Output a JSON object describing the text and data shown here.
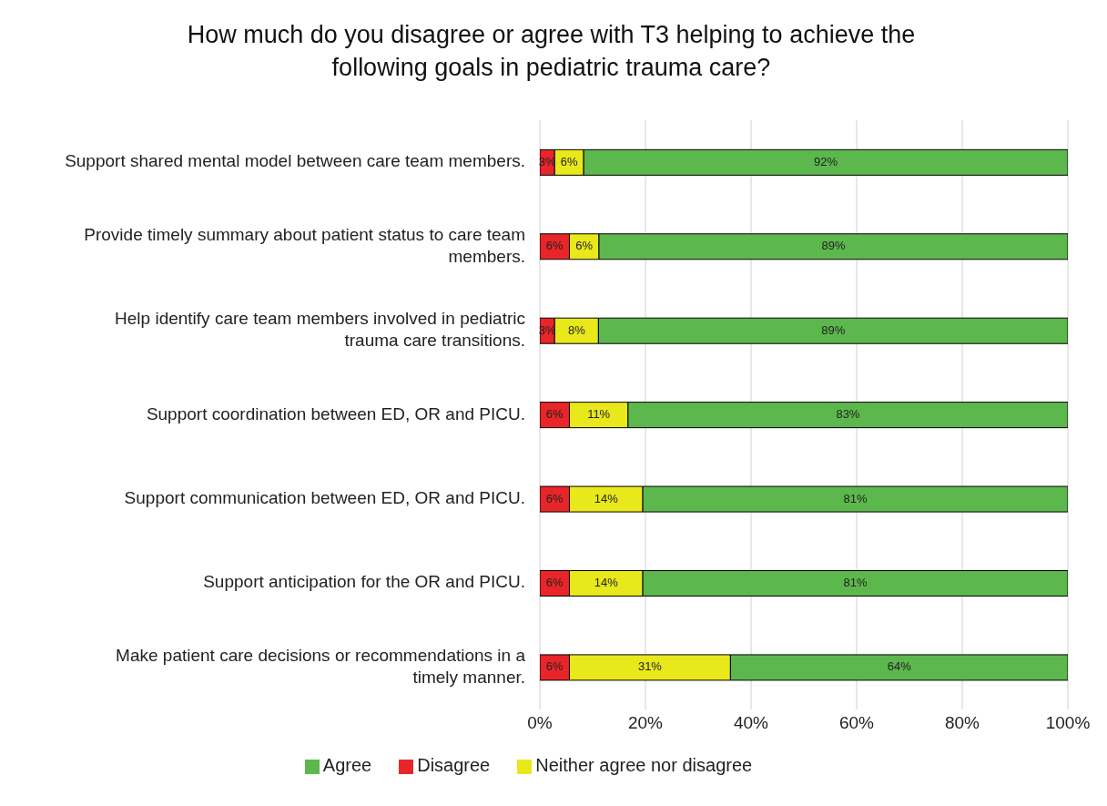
{
  "chart_data": {
    "type": "bar",
    "orientation": "horizontal",
    "stacked": true,
    "title": "How much do you disagree or agree with T3 helping to achieve the following goals in pediatric trauma care?",
    "categories": [
      "Support shared mental model between care team members.",
      "Provide timely summary about patient status to care team members.",
      "Help identify care team members involved in pediatric trauma care transitions.",
      "Support coordination between ED, OR and PICU.",
      "Support communication between ED, OR and PICU.",
      "Support anticipation for the OR and PICU.",
      "Make patient care decisions or recommendations in a timely manner."
    ],
    "series": [
      {
        "name": "Disagree",
        "color": "#e8262a",
        "values": [
          2.8,
          5.6,
          2.8,
          5.6,
          5.6,
          5.6,
          5.6
        ],
        "value_labels": [
          "3%",
          "6%",
          "3%",
          "6%",
          "6%",
          "6%",
          "6%"
        ]
      },
      {
        "name": "Neither agree nor disagree",
        "color": "#e8e81a",
        "values": [
          5.5,
          5.6,
          8.3,
          11.1,
          13.9,
          13.9,
          30.5
        ],
        "value_labels": [
          "6%",
          "6%",
          "8%",
          "11%",
          "14%",
          "14%",
          "31%"
        ]
      },
      {
        "name": "Agree",
        "color": "#5cb84c",
        "values": [
          91.7,
          88.8,
          88.9,
          83.3,
          80.5,
          80.5,
          63.9
        ],
        "value_labels": [
          "92%",
          "89%",
          "89%",
          "83%",
          "81%",
          "81%",
          "64%"
        ]
      }
    ],
    "xlim": [
      0,
      100
    ],
    "xticks": [
      {
        "value": 0,
        "label": "0%"
      },
      {
        "value": 20,
        "label": "20%"
      },
      {
        "value": 40,
        "label": "40%"
      },
      {
        "value": 60,
        "label": "60%"
      },
      {
        "value": 80,
        "label": "80%"
      },
      {
        "value": 100,
        "label": "100%"
      }
    ],
    "grid": "x",
    "legend": "bottom"
  }
}
